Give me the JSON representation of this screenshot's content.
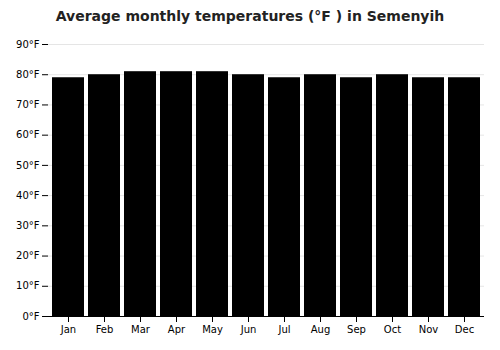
{
  "chart_data": {
    "type": "bar",
    "title": "Average monthly temperatures (°F ) in Semenyih",
    "categories": [
      "Jan",
      "Feb",
      "Mar",
      "Apr",
      "May",
      "Jun",
      "Jul",
      "Aug",
      "Sep",
      "Oct",
      "Nov",
      "Dec"
    ],
    "values": [
      79,
      80,
      81,
      81,
      81,
      80,
      79,
      80,
      79,
      80,
      79,
      79
    ],
    "ylim": [
      0,
      90
    ],
    "yticks": [
      {
        "value": 0,
        "label": "0°F"
      },
      {
        "value": 10,
        "label": "10°F"
      },
      {
        "value": 20,
        "label": "20°F"
      },
      {
        "value": 30,
        "label": "30°F"
      },
      {
        "value": 40,
        "label": "40°F"
      },
      {
        "value": 50,
        "label": "50°F"
      },
      {
        "value": 60,
        "label": "60°F"
      },
      {
        "value": 70,
        "label": "70°F"
      },
      {
        "value": 80,
        "label": "80°F"
      },
      {
        "value": 90,
        "label": "90°F"
      }
    ],
    "grid": true
  }
}
